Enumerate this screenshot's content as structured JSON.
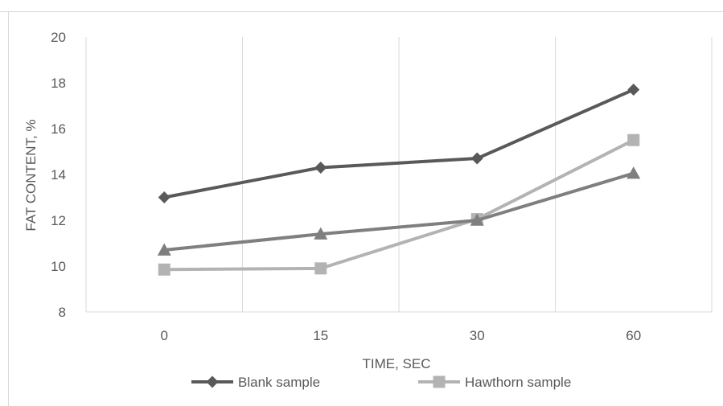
{
  "chart_data": {
    "type": "line",
    "categories": [
      "0",
      "15",
      "30",
      "60"
    ],
    "xlabel": "TIME, SEC",
    "ylabel": "FAT CONTENT, %",
    "ylim": [
      8,
      20
    ],
    "y_ticks": [
      8,
      10,
      12,
      14,
      16,
      18,
      20
    ],
    "grid": "vertical",
    "legend_position": "bottom",
    "series": [
      {
        "name": "Blank sample",
        "values": [
          13.0,
          14.3,
          14.7,
          17.7
        ],
        "color": "#595959",
        "marker": "diamond",
        "in_legend": true
      },
      {
        "name": "",
        "values": [
          10.7,
          11.4,
          12.0,
          14.05
        ],
        "color": "#7f7f7f",
        "marker": "triangle",
        "in_legend": false
      },
      {
        "name": "Hawthorn sample",
        "values": [
          9.85,
          9.9,
          12.05,
          15.5
        ],
        "color": "#b3b3b3",
        "marker": "square",
        "in_legend": true
      }
    ]
  }
}
